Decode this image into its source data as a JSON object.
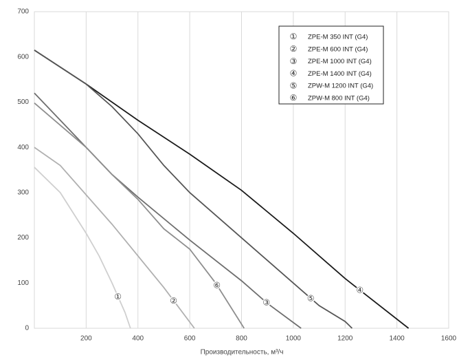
{
  "chart_data": {
    "type": "line",
    "x_label": "Производительность,  м³/ч",
    "xlim": [
      0,
      1600
    ],
    "xticks": [
      200,
      400,
      600,
      800,
      1000,
      1200,
      1400,
      1600
    ],
    "ylim": [
      0,
      700
    ],
    "yticks": [
      0,
      100,
      200,
      300,
      400,
      500,
      600,
      700
    ],
    "grid": "x",
    "legend": "upper right",
    "series": [
      {
        "name": "ZPE-M 350 INT (G4)",
        "marker": "①",
        "color": "#cfcfcf",
        "x": [
          0,
          100,
          200,
          250,
          300,
          350,
          371
        ],
        "values": [
          356,
          300,
          210,
          160,
          100,
          35,
          0
        ]
      },
      {
        "name": "ZPE-M 600 INT (G4)",
        "marker": "②",
        "color": "#b0b0b0",
        "x": [
          0,
          100,
          200,
          300,
          400,
          500,
          618
        ],
        "values": [
          400,
          360,
          295,
          230,
          160,
          90,
          0
        ]
      },
      {
        "name": "ZPE-M 1000 INT (G4)",
        "marker": "③",
        "color": "#6e6e6e",
        "x": [
          0,
          200,
          300,
          400,
          600,
          800,
          900,
          1030
        ],
        "values": [
          520,
          400,
          340,
          290,
          195,
          105,
          55,
          0
        ]
      },
      {
        "name": "ZPE-M 1400 INT (G4)",
        "marker": "④",
        "color": "#1a1a1a",
        "x": [
          0,
          200,
          400,
          600,
          800,
          1000,
          1200,
          1445
        ],
        "values": [
          615,
          540,
          460,
          385,
          305,
          210,
          110,
          0
        ]
      },
      {
        "name": "ZPW-M 1200 INT (G4)",
        "marker": "⑤",
        "color": "#555555",
        "x": [
          0,
          200,
          300,
          400,
          500,
          600,
          700,
          800,
          900,
          1000,
          1100,
          1200,
          1227
        ],
        "values": [
          615,
          540,
          490,
          430,
          360,
          300,
          250,
          200,
          150,
          100,
          50,
          15,
          0
        ]
      },
      {
        "name": "ZPW-M 800 INT (G4)",
        "marker": "⑥",
        "color": "#8e8e8e",
        "x": [
          0,
          200,
          300,
          400,
          500,
          600,
          700,
          810
        ],
        "values": [
          498,
          400,
          340,
          285,
          220,
          175,
          100,
          0
        ]
      }
    ]
  }
}
